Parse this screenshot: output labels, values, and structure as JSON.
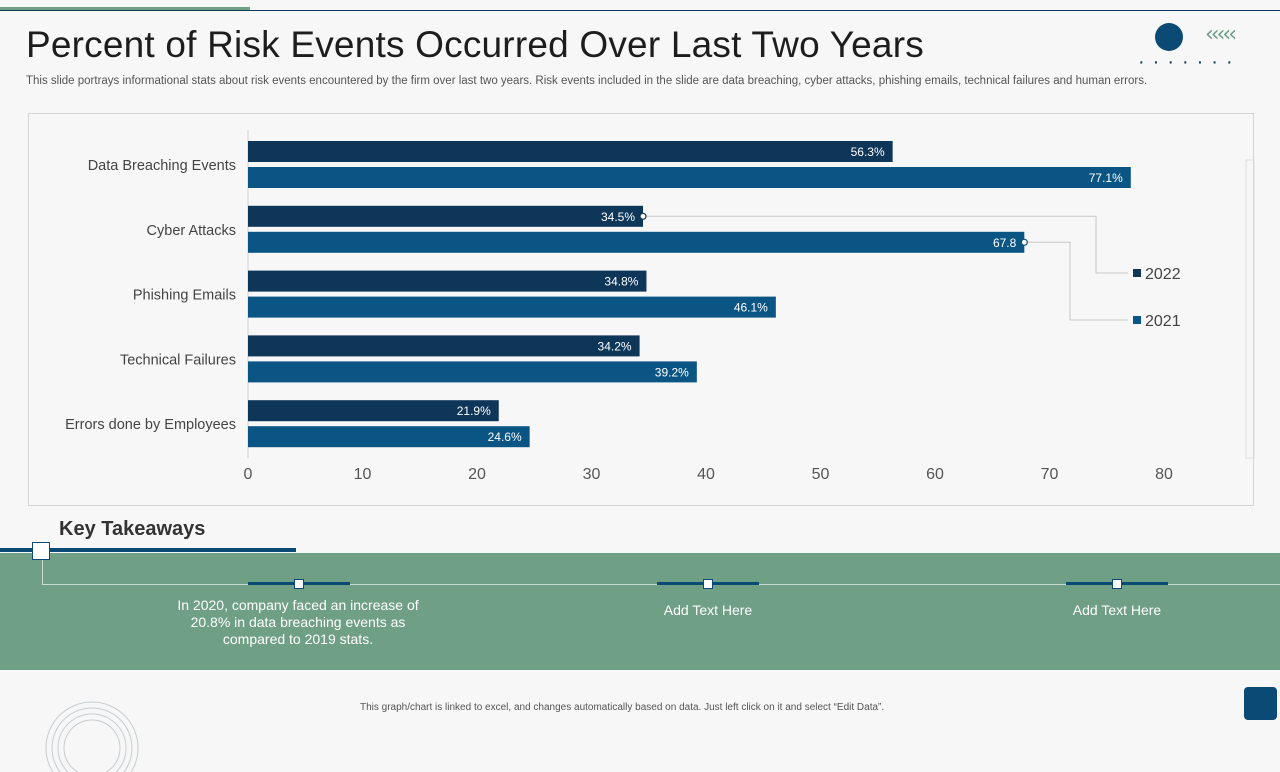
{
  "slide": {
    "title": "Percent of Risk Events Occurred Over Last Two Years",
    "subtitle": "This slide portrays informational stats about risk events encountered by the firm over last two years. Risk events included in the slide are data breaching, cyber attacks, phishing emails, technical failures and human errors.",
    "footer": "This graph/chart is linked to excel, and changes automatically based on data. Just left click on it and select “Edit Data”."
  },
  "chart_data": {
    "type": "bar",
    "orientation": "horizontal",
    "categories": [
      "Data Breaching Events",
      "Cyber Attacks",
      "Phishing Emails",
      "Technical Failures",
      "Errors done by Employees"
    ],
    "series": [
      {
        "name": "2022",
        "color": "#0d3658",
        "values": [
          56.3,
          34.5,
          34.8,
          34.2,
          21.9
        ],
        "labels": [
          "56.3%",
          "34.5%",
          "34.8%",
          "34.2%",
          "21.9%"
        ]
      },
      {
        "name": "2021",
        "color": "#0b5585",
        "values": [
          77.1,
          67.8,
          46.1,
          39.2,
          24.6
        ],
        "labels": [
          "77.1%",
          "67.8",
          "46.1%",
          "39.2%",
          "24.6%"
        ]
      }
    ],
    "xlim": [
      0,
      80
    ],
    "xticks": [
      "0",
      "10",
      "20",
      "30",
      "40",
      "50",
      "60",
      "70",
      "80"
    ],
    "legend": "right"
  },
  "takeaways": {
    "title": "Key Takeaways",
    "items": [
      "In 2020, company faced an increase of 20.8% in data breaching events as compared to 2019 stats.",
      "Add Text Here",
      "Add Text Here"
    ]
  },
  "colors": {
    "accent_green": "#6f9f85",
    "navy": "#0c4a76"
  }
}
